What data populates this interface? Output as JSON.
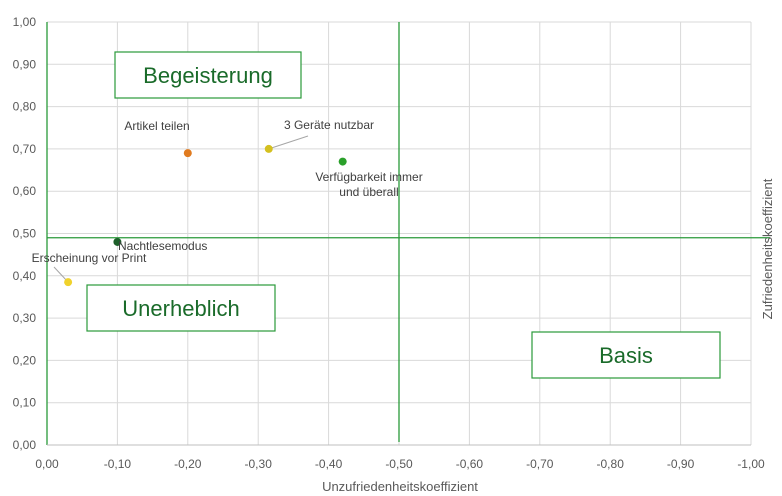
{
  "chart_data": {
    "type": "scatter",
    "xlabel": "Unzufriedenheitskoeffizient",
    "ylabel": "Zufriedenheitskoeffizient",
    "xlim": [
      0,
      -1
    ],
    "ylim": [
      0,
      1
    ],
    "x_ticks": [
      "0,00",
      "-0,10",
      "-0,20",
      "-0,30",
      "-0,40",
      "-0,50",
      "-0,60",
      "-0,70",
      "-0,80",
      "-0,90",
      "-1,00"
    ],
    "y_ticks": [
      "0,00",
      "0,10",
      "0,20",
      "0,30",
      "0,40",
      "0,50",
      "0,60",
      "0,70",
      "0,80",
      "0,90",
      "1,00"
    ],
    "grid": true,
    "reference_lines": {
      "x": -0.5,
      "y": 0.49
    },
    "points": [
      {
        "label": "Artikel teilen",
        "x": -0.2,
        "y": 0.69,
        "color": "#e07b20"
      },
      {
        "label": "3 Geräte nutzbar",
        "x": -0.315,
        "y": 0.7,
        "color": "#d4c020"
      },
      {
        "label_lines": [
          "Verfügbarkeit immer",
          "und überall"
        ],
        "x": -0.42,
        "y": 0.67,
        "color": "#2aa02a"
      },
      {
        "label": "Nachtlesemodus",
        "x": -0.1,
        "y": 0.48,
        "color": "#1d5f2a"
      },
      {
        "label": "Erscheinung vor Print",
        "x": -0.03,
        "y": 0.385,
        "color": "#f0d22c"
      }
    ],
    "quadrant_labels": {
      "top_left": "Begeisterung",
      "bottom_left": "Unerheblich",
      "bottom_right": "Basis"
    },
    "colors": {
      "reference_line": "#2a9a3a",
      "grid": "#d9d9d9",
      "quadrant_text": "#1a6b2a"
    }
  }
}
